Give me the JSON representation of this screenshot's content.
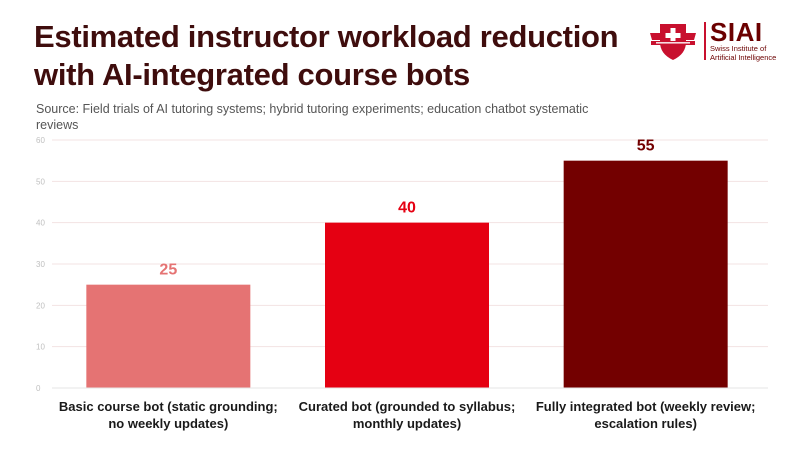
{
  "header": {
    "title_line1": "Estimated instructor workload reduction",
    "title_line2": "with AI-integrated course bots",
    "source": "Source: Field trials of AI tutoring systems; hybrid tutoring experiments; education chatbot systematic reviews"
  },
  "logo": {
    "name": "SIAI",
    "sub_line1": "Swiss Institute of",
    "sub_line2": "Artificial Intelligence",
    "icon": "swiss-cross-shield-icon"
  },
  "chart_data": {
    "type": "bar",
    "title": "Estimated instructor workload reduction with AI-integrated course bots",
    "categories": [
      [
        "Basic course bot (static grounding;",
        "no weekly updates)"
      ],
      [
        "Curated bot (grounded to syllabus;",
        "monthly updates)"
      ],
      [
        "Fully integrated bot (weekly review;",
        "escalation rules)"
      ]
    ],
    "values": [
      25,
      40,
      55
    ],
    "colors": [
      "#e57373",
      "#e50012",
      "#730000"
    ],
    "label_colors": [
      "#e57373",
      "#e50012",
      "#730000"
    ],
    "ylim": [
      0,
      60
    ],
    "yticks": [
      0,
      10,
      20,
      30,
      40,
      50,
      60
    ],
    "xlabel": "",
    "ylabel": "",
    "grid": true,
    "legend": "none"
  }
}
